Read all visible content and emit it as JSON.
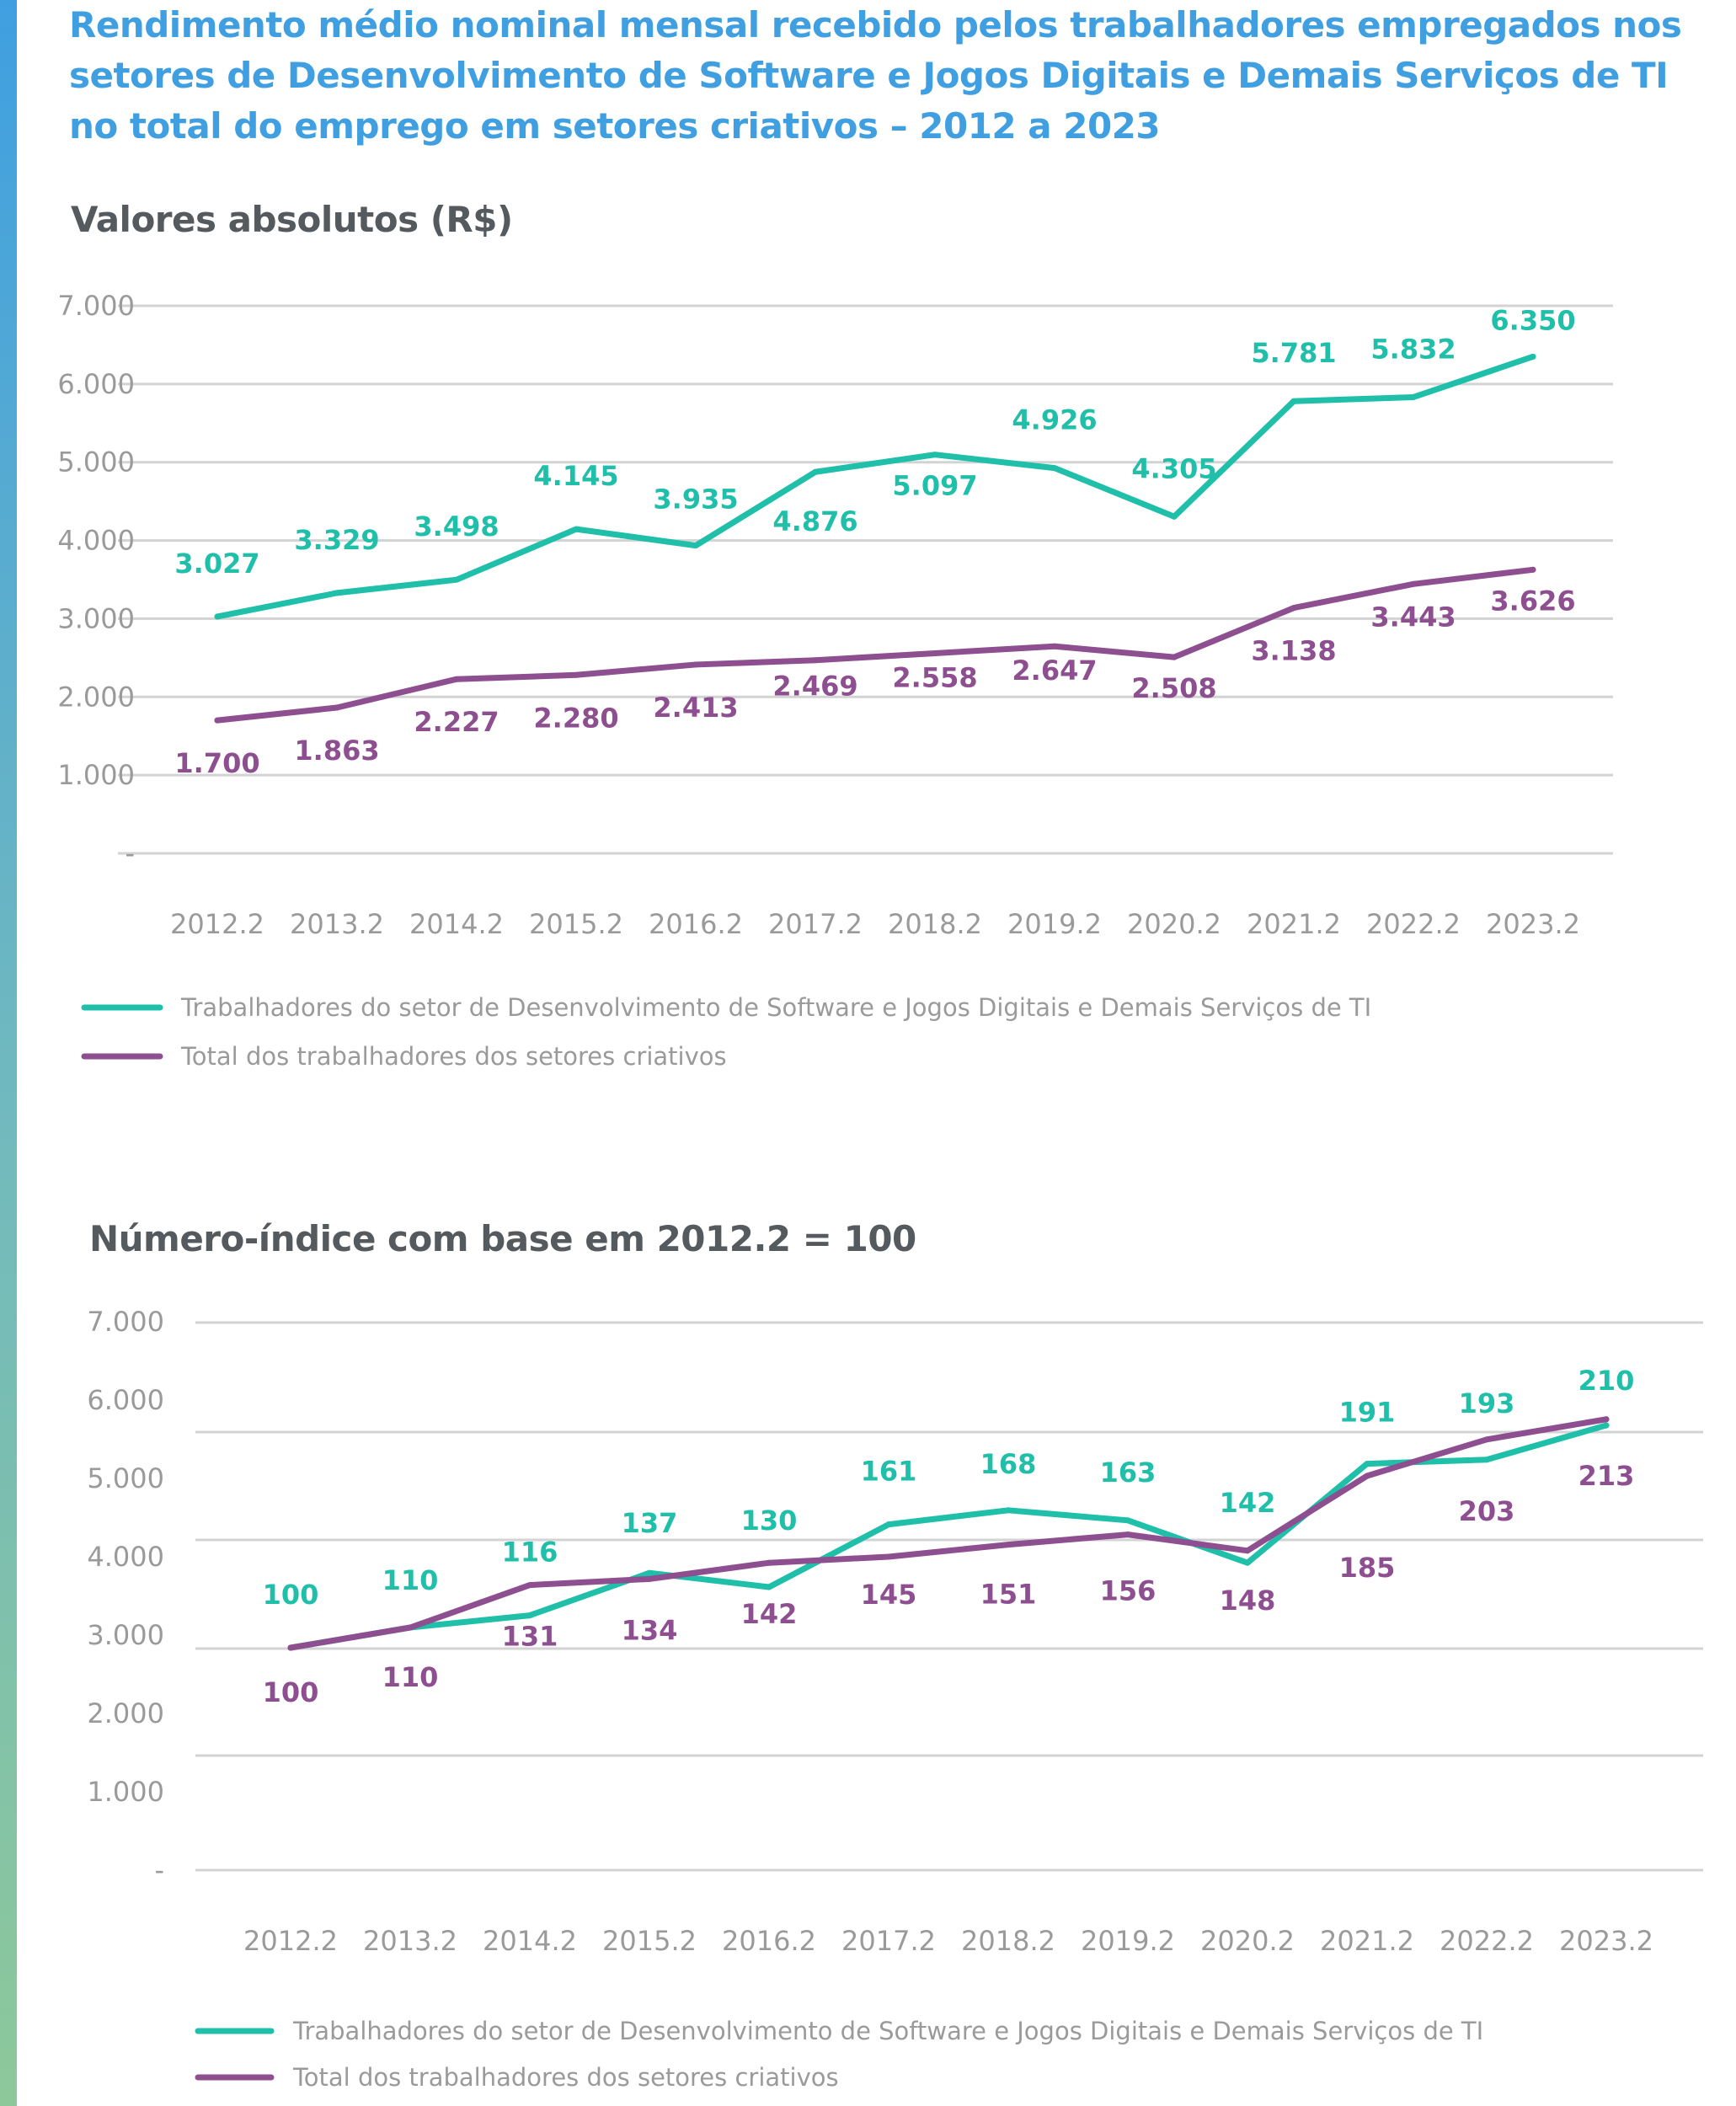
{
  "title": "Rendimento médio nominal mensal recebido pelos trabalhadores empregados nos setores de Desenvolvimento de Software e Jogos Digitais e Demais Serviços de TI no total do emprego em setores criativos – 2012 a 2023",
  "colors": {
    "title": "#3f9fe0",
    "subtitle": "#555a5e",
    "series_ti": "#1fbfa9",
    "series_total": "#8e4f91",
    "grid": "#d3d3d3",
    "axis_text": "#9a9a9a"
  },
  "chart_data": [
    {
      "type": "line",
      "subtitle": "Valores absolutos (R$)",
      "categories": [
        "2012.2",
        "2013.2",
        "2014.2",
        "2015.2",
        "2016.2",
        "2017.2",
        "2018.2",
        "2019.2",
        "2020.2",
        "2021.2",
        "2022.2",
        "2023.2"
      ],
      "ylim": [
        0,
        7000
      ],
      "yticks": [
        "-",
        "1.000",
        "2.000",
        "3.000",
        "4.000",
        "5.000",
        "6.000",
        "7.000"
      ],
      "grid": true,
      "legend_position": "bottom-left",
      "series": [
        {
          "name": "Trabalhadores do setor de Desenvolvimento de Software e Jogos Digitais e Demais Serviços de TI",
          "color": "#1fbfa9",
          "values": [
            3027,
            3329,
            3498,
            4145,
            3935,
            4876,
            5097,
            4926,
            4305,
            5781,
            5832,
            6350
          ],
          "labels": [
            "3.027",
            "3.329",
            "3.498",
            "4.145",
            "3.935",
            "4.876",
            "5.097",
            "4.926",
            "4.305",
            "5.781",
            "5.832",
            "6.350"
          ]
        },
        {
          "name": "Total dos trabalhadores dos setores criativos",
          "color": "#8e4f91",
          "values": [
            1700,
            1863,
            2227,
            2280,
            2413,
            2469,
            2558,
            2647,
            2508,
            3138,
            3443,
            3626
          ],
          "labels": [
            "1.700",
            "1.863",
            "2.227",
            "2.280",
            "2.413",
            "2.469",
            "2.558",
            "2.647",
            "2.508",
            "3.138",
            "3.443",
            "3.626"
          ]
        }
      ]
    },
    {
      "type": "line",
      "subtitle": "Número-índice com base em 2012.2 = 100",
      "categories": [
        "2012.2",
        "2013.2",
        "2014.2",
        "2015.2",
        "2016.2",
        "2017.2",
        "2018.2",
        "2019.2",
        "2020.2",
        "2021.2",
        "2022.2",
        "2023.2"
      ],
      "yticks": [
        "-",
        "1.000",
        "2.000",
        "3.000",
        "4.000",
        "5.000",
        "6.000",
        "7.000"
      ],
      "grid": true,
      "legend_position": "bottom-left",
      "series": [
        {
          "name": "Trabalhadores do setor de Desenvolvimento de Software e Jogos Digitais e Demais Serviços de TI",
          "color": "#1fbfa9",
          "values": [
            100,
            110,
            116,
            137,
            130,
            161,
            168,
            163,
            142,
            191,
            193,
            210
          ],
          "labels": [
            "100",
            "110",
            "116",
            "137",
            "130",
            "161",
            "168",
            "163",
            "142",
            "191",
            "193",
            "210"
          ]
        },
        {
          "name": "Total dos trabalhadores dos setores criativos",
          "color": "#8e4f91",
          "values": [
            100,
            110,
            131,
            134,
            142,
            145,
            151,
            156,
            148,
            185,
            203,
            213
          ],
          "labels": [
            "100",
            "110",
            "131",
            "134",
            "142",
            "145",
            "151",
            "156",
            "148",
            "185",
            "203",
            "213"
          ]
        }
      ]
    }
  ]
}
